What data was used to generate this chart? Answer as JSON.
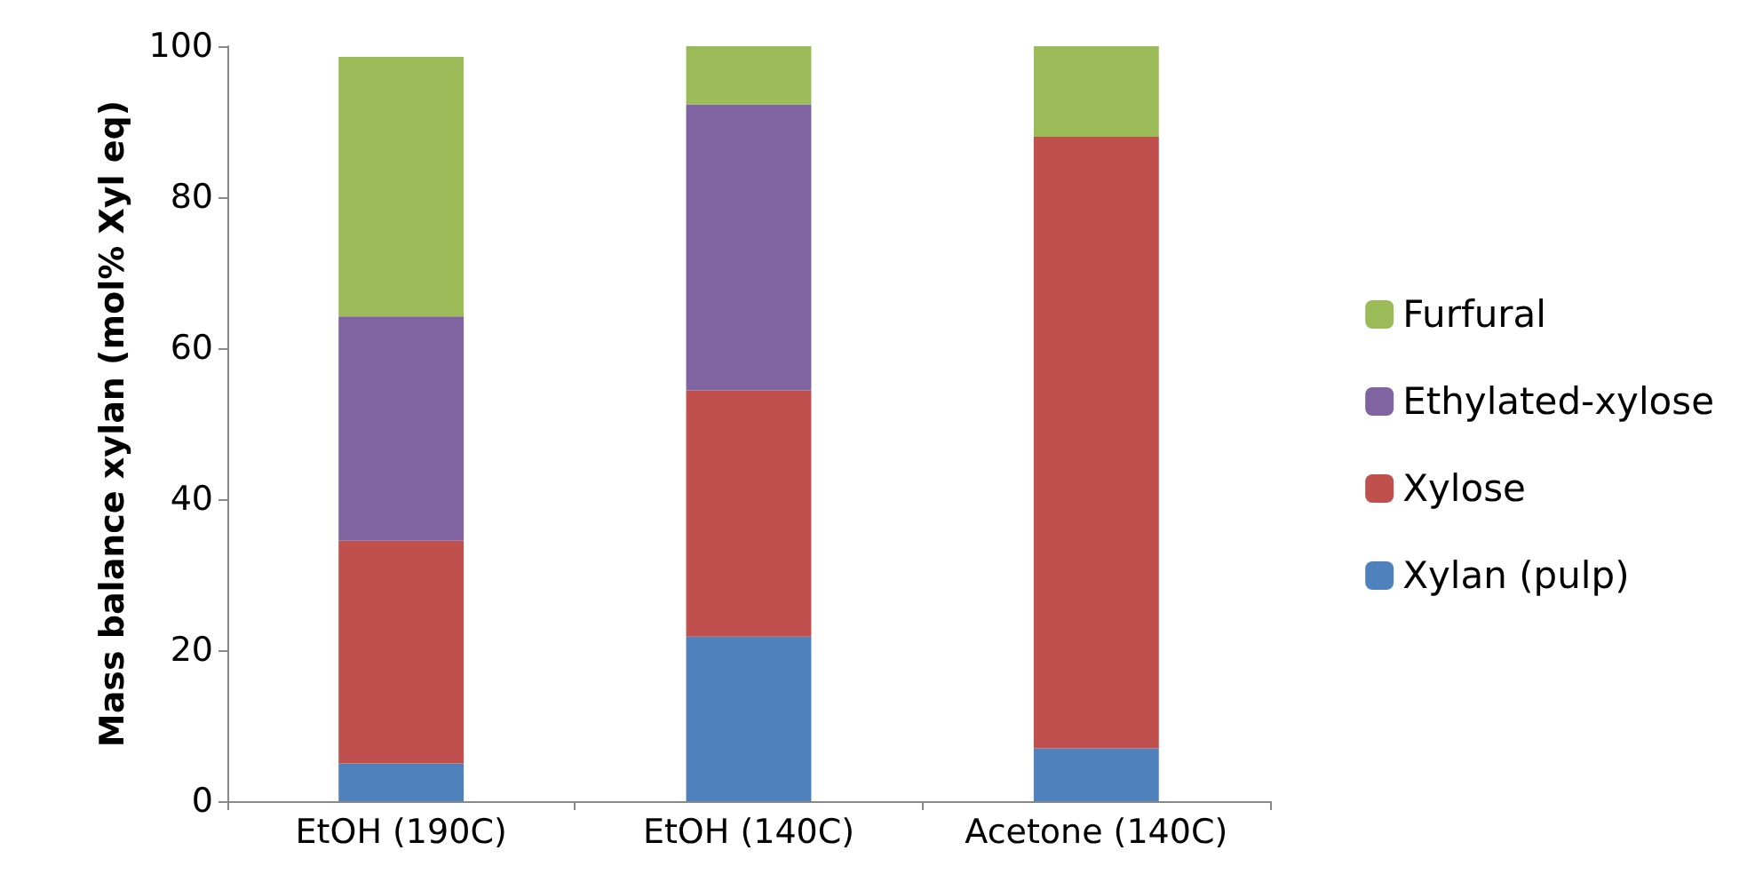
{
  "chart_data": {
    "type": "bar",
    "stacked": true,
    "ylabel": "Mass balance xylan (mol% Xyl eq)",
    "categories": [
      "EtOH (190C)",
      "EtOH (140C)",
      "Acetone (140C)"
    ],
    "series": [
      {
        "name": "Xylan (pulp)",
        "color": "#4f81bd",
        "values": [
          5,
          21.8,
          7
        ]
      },
      {
        "name": "Xylose",
        "color": "#c0504d",
        "values": [
          29.5,
          32.6,
          81
        ]
      },
      {
        "name": "Ethylated-xylose",
        "color": "#8064a2",
        "values": [
          29.7,
          37.9,
          0
        ]
      },
      {
        "name": "Furfural",
        "color": "#9bbb59",
        "values": [
          34.4,
          7.7,
          12
        ]
      }
    ],
    "ylim": [
      0,
      100
    ],
    "yticks": [
      0,
      20,
      40,
      60,
      80,
      100
    ],
    "grid": false,
    "legend": "right"
  }
}
